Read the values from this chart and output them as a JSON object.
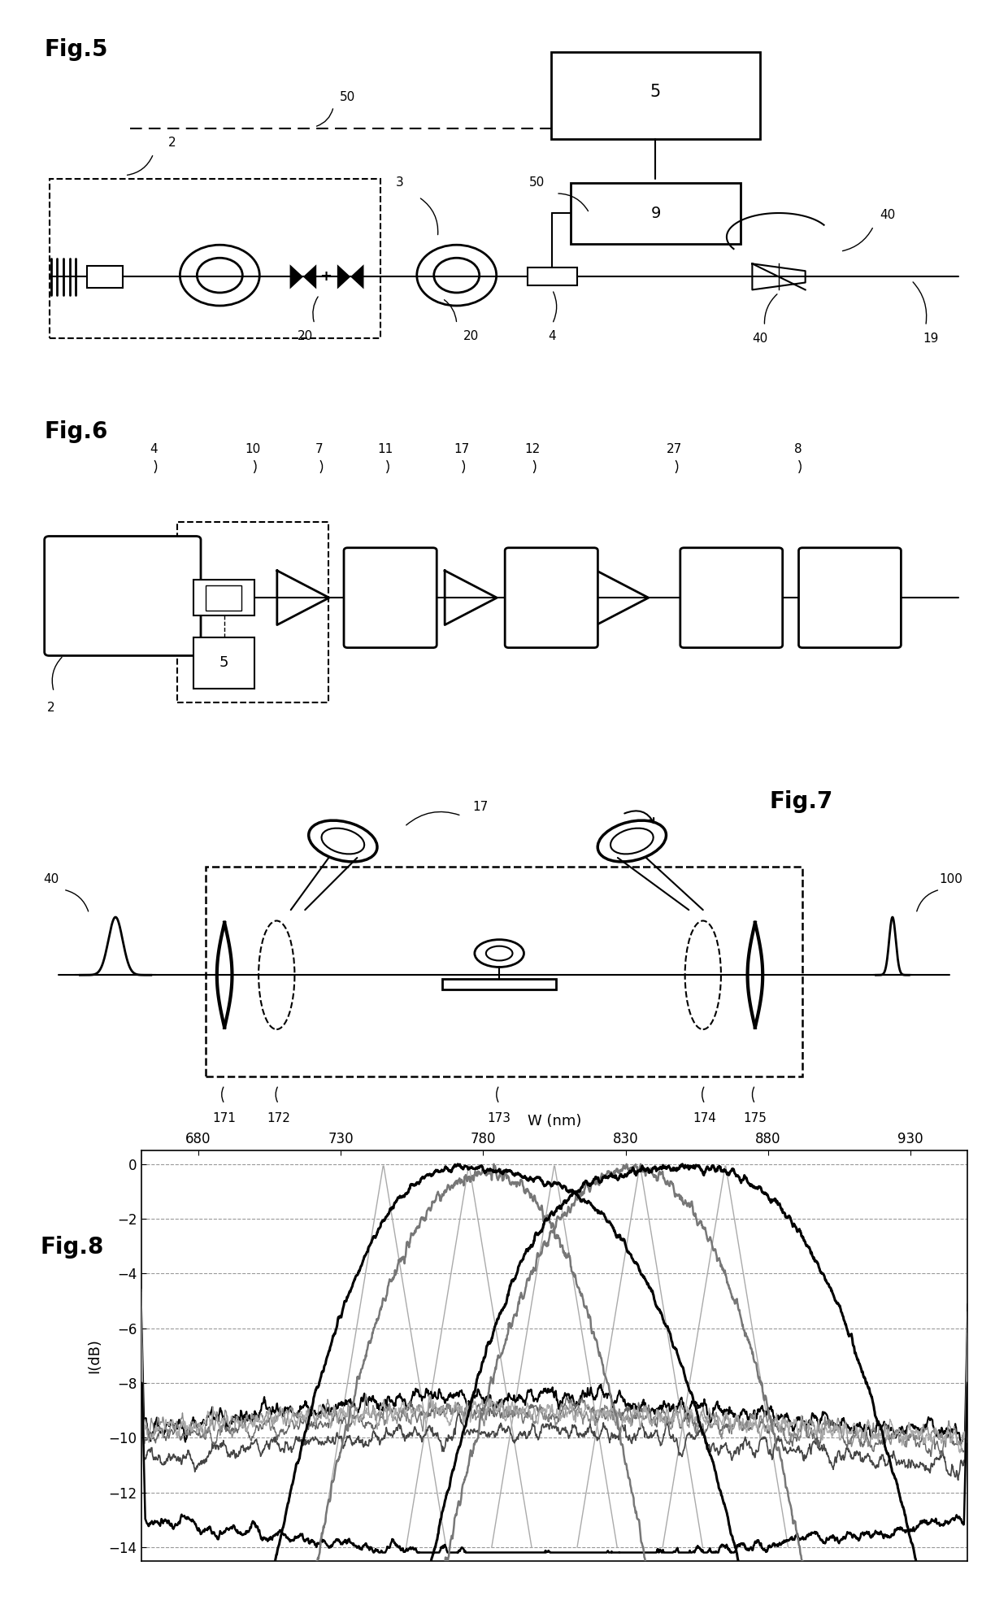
{
  "fig8": {
    "xlabel": "W (nm)",
    "ylabel": "I(dB)",
    "xticks": [
      680,
      730,
      780,
      830,
      880,
      930
    ],
    "yticks": [
      0,
      -2,
      -4,
      -6,
      -8,
      -10,
      -12,
      -14
    ],
    "xlim": [
      660,
      950
    ],
    "ylim": [
      -14.5,
      0.5
    ]
  }
}
